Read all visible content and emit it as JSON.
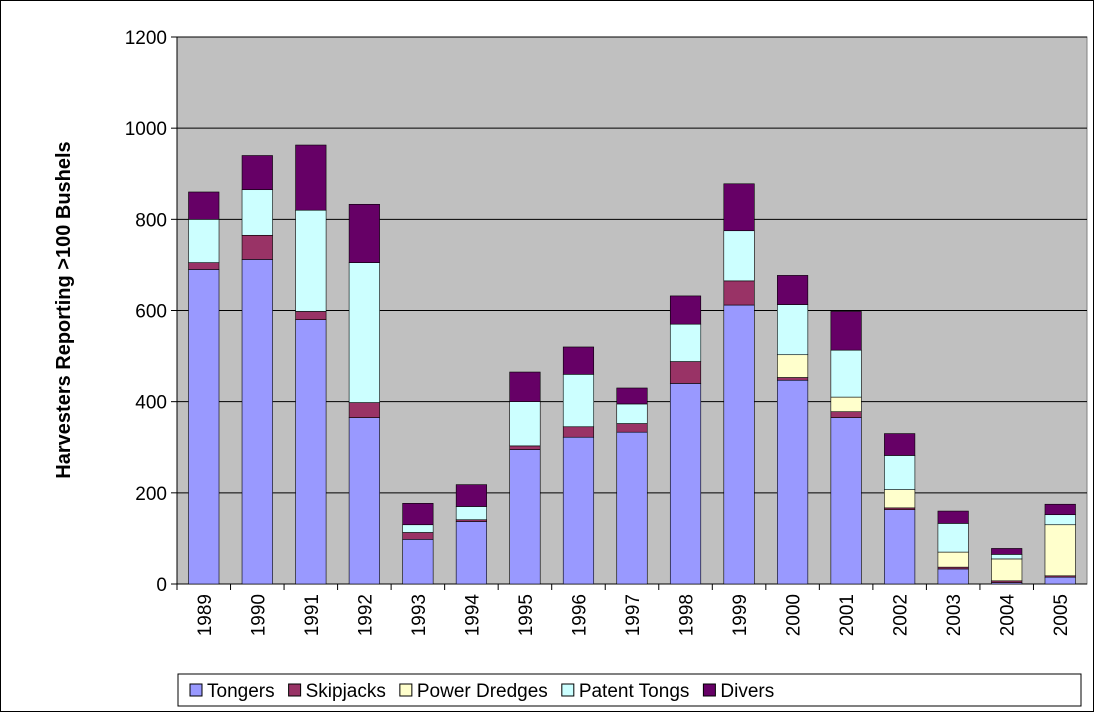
{
  "chart_data": {
    "type": "stacked_bar",
    "y_label": "Harvesters Reporting >100 Bushels",
    "categories": [
      "1989",
      "1990",
      "1991",
      "1992",
      "1993",
      "1994",
      "1995",
      "1996",
      "1997",
      "1998",
      "1999",
      "2000",
      "2001",
      "2002",
      "2003",
      "2004",
      "2005"
    ],
    "series": [
      {
        "name": "Tongers",
        "color": "#9999ff",
        "values": [
          690,
          712,
          580,
          365,
          98,
          137,
          295,
          322,
          333,
          440,
          612,
          447,
          365,
          163,
          33,
          3,
          15
        ]
      },
      {
        "name": "Skipjacks",
        "color": "#993366",
        "values": [
          15,
          53,
          18,
          33,
          15,
          4,
          8,
          23,
          19,
          48,
          53,
          6,
          13,
          4,
          4,
          4,
          3
        ]
      },
      {
        "name": "Power Dredges",
        "color": "#ffffcc",
        "values": [
          0,
          0,
          0,
          0,
          0,
          0,
          0,
          0,
          0,
          0,
          0,
          50,
          32,
          40,
          33,
          48,
          112
        ]
      },
      {
        "name": "Patent Tongs",
        "color": "#ccffff",
        "values": [
          95,
          100,
          222,
          307,
          17,
          29,
          97,
          115,
          43,
          82,
          110,
          110,
          103,
          75,
          63,
          10,
          22
        ]
      },
      {
        "name": "Divers",
        "color": "#660066",
        "values": [
          60,
          75,
          143,
          128,
          47,
          48,
          65,
          60,
          35,
          62,
          103,
          64,
          85,
          48,
          27,
          13,
          23
        ]
      }
    ],
    "ylim": [
      0,
      1200
    ],
    "yticks": [
      0,
      200,
      400,
      600,
      800,
      1000,
      1200
    ],
    "grid": true,
    "plot_background": "#c0c0c0"
  }
}
